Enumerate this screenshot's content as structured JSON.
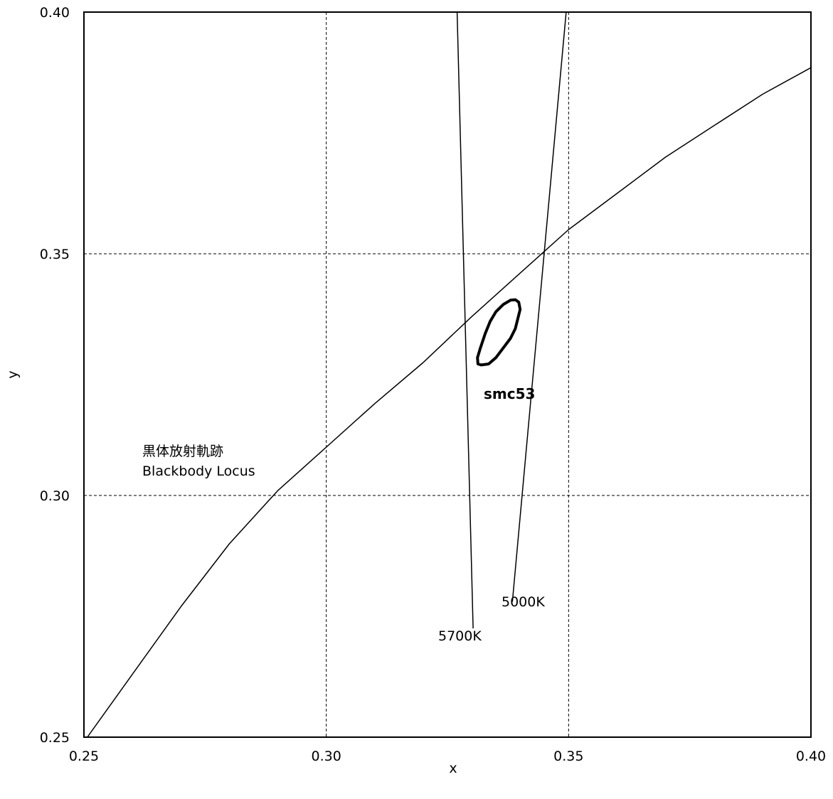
{
  "chart_data": {
    "type": "line",
    "title": "",
    "xlabel": "x",
    "ylabel": "y",
    "xlim": [
      0.25,
      0.4
    ],
    "ylim": [
      0.25,
      0.4
    ],
    "x_ticks": [
      "0.25",
      "0.30",
      "0.35",
      "0.40"
    ],
    "y_ticks": [
      "0.25",
      "0.30",
      "0.35",
      "0.40"
    ],
    "grid": "dashed",
    "series": [
      {
        "name": "Blackbody Locus",
        "points": [
          [
            0.2507,
            0.25
          ],
          [
            0.26,
            0.263
          ],
          [
            0.27,
            0.277
          ],
          [
            0.28,
            0.29
          ],
          [
            0.29,
            0.301
          ],
          [
            0.3,
            0.31
          ],
          [
            0.31,
            0.319
          ],
          [
            0.32,
            0.3275
          ],
          [
            0.33,
            0.337
          ],
          [
            0.34,
            0.346
          ],
          [
            0.35,
            0.355
          ],
          [
            0.36,
            0.3625
          ],
          [
            0.37,
            0.37
          ],
          [
            0.38,
            0.3765
          ],
          [
            0.39,
            0.383
          ],
          [
            0.4,
            0.3885
          ]
        ]
      },
      {
        "name": "5700K",
        "points": [
          [
            0.327,
            0.4
          ],
          [
            0.3303,
            0.2725
          ]
        ]
      },
      {
        "name": "5000K",
        "points": [
          [
            0.3495,
            0.4
          ],
          [
            0.3384,
            0.278
          ]
        ]
      },
      {
        "name": "smc53",
        "closed": true,
        "points": [
          [
            0.332,
            0.327
          ],
          [
            0.3335,
            0.3272
          ],
          [
            0.335,
            0.3285
          ],
          [
            0.3365,
            0.3305
          ],
          [
            0.338,
            0.3325
          ],
          [
            0.339,
            0.3345
          ],
          [
            0.3395,
            0.3365
          ],
          [
            0.34,
            0.3385
          ],
          [
            0.3397,
            0.34
          ],
          [
            0.339,
            0.3405
          ],
          [
            0.338,
            0.3404
          ],
          [
            0.3365,
            0.3395
          ],
          [
            0.335,
            0.338
          ],
          [
            0.3338,
            0.336
          ],
          [
            0.3328,
            0.3335
          ],
          [
            0.3318,
            0.3305
          ],
          [
            0.3312,
            0.3285
          ],
          [
            0.3313,
            0.3272
          ]
        ]
      }
    ],
    "annotations": {
      "locus_jp": "黒体放射軌跡",
      "locus_en": "Blackbody Locus",
      "cct_5700": "5700K",
      "cct_5000": "5000K",
      "sample": "smc53"
    }
  }
}
